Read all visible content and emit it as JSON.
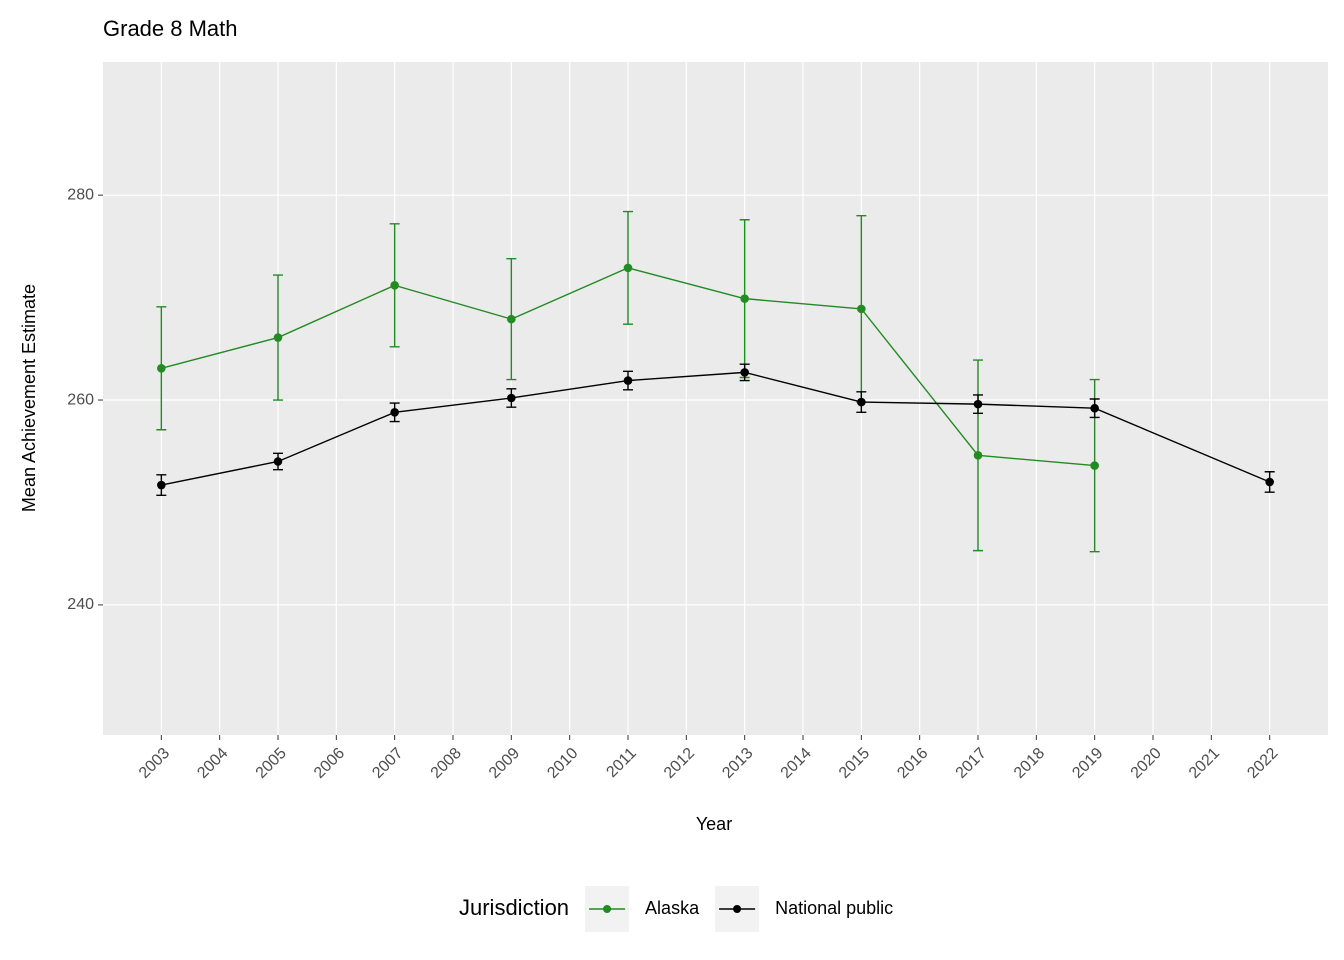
{
  "chart_data": {
    "type": "line",
    "title": "Grade 8 Math",
    "x_label": "Year",
    "y_label": "Mean Achievement Estimate",
    "legend_title": "Jurisdiction",
    "legend_position": "bottom",
    "grid": true,
    "xlim": [
      2002,
      2023
    ],
    "ylim": [
      227.3,
      293
    ],
    "xticks": [
      2003,
      2004,
      2005,
      2006,
      2007,
      2008,
      2009,
      2010,
      2011,
      2012,
      2013,
      2014,
      2015,
      2016,
      2017,
      2018,
      2019,
      2020,
      2021,
      2022
    ],
    "yticks": [
      240,
      260,
      280
    ],
    "series": [
      {
        "name": "Alaska",
        "color": "#228B22",
        "x": [
          2003,
          2005,
          2007,
          2009,
          2011,
          2013,
          2015,
          2017,
          2019
        ],
        "values": [
          263.1,
          266.1,
          271.2,
          267.9,
          272.9,
          269.9,
          268.9,
          254.6,
          253.6
        ],
        "errors": [
          6.0,
          6.1,
          6.0,
          5.9,
          5.5,
          7.7,
          9.1,
          9.3,
          8.4
        ]
      },
      {
        "name": "National public",
        "color": "#000000",
        "x": [
          2003,
          2005,
          2007,
          2009,
          2011,
          2013,
          2015,
          2017,
          2019,
          2022
        ],
        "values": [
          251.7,
          254.0,
          258.8,
          260.2,
          261.9,
          262.7,
          259.8,
          259.6,
          259.2,
          252.0
        ],
        "errors": [
          1.0,
          0.8,
          0.9,
          0.9,
          0.9,
          0.8,
          1.0,
          0.9,
          0.9,
          1.0
        ]
      }
    ]
  }
}
